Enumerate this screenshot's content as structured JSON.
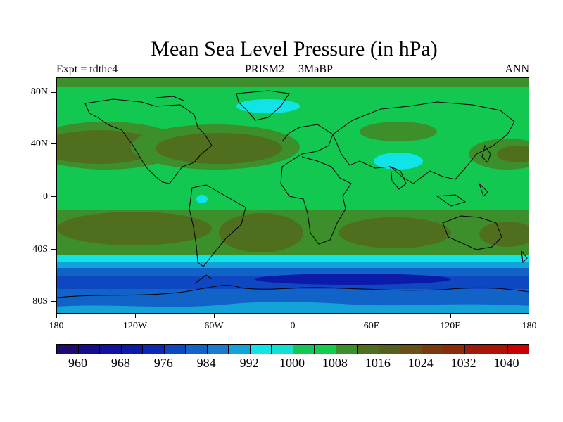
{
  "title": "Mean Sea Level Pressure (in hPa)",
  "experiment": "Expt = tdthc4",
  "scenario": "PRISM2     3MaBP",
  "season": "ANN",
  "y_axis_labels": [
    "80N",
    "40N",
    "0",
    "40S",
    "80S"
  ],
  "x_axis_labels": [
    "180",
    "120W",
    "60W",
    "0",
    "60E",
    "120E",
    "180"
  ],
  "colorbar": {
    "labels": [
      "960",
      "968",
      "976",
      "984",
      "992",
      "1000",
      "1008",
      "1016",
      "1024",
      "1032",
      "1040"
    ],
    "colors": [
      "#200a6e",
      "#150c8a",
      "#10119e",
      "#0c1aa9",
      "#0a2ab5",
      "#0f46c2",
      "#1263c8",
      "#1a7bcc",
      "#12a3d9",
      "#10e4e6",
      "#13e0d5",
      "#12c850",
      "#0fcf4c",
      "#3c8f2b",
      "#4f6f1f",
      "#55601e",
      "#6a4f16",
      "#7a3a10",
      "#8c2a0c",
      "#a01a08",
      "#b01006",
      "#c80000"
    ]
  },
  "map_colors": {
    "green": "#12c850",
    "dark_green": "#3c8f2b",
    "olive": "#4f6f1f",
    "cyan": "#10e4e6",
    "light_blue": "#12a3d9",
    "mid_blue": "#1263c8",
    "blue": "#0f46c2",
    "deep_blue": "#0c1aa9"
  }
}
